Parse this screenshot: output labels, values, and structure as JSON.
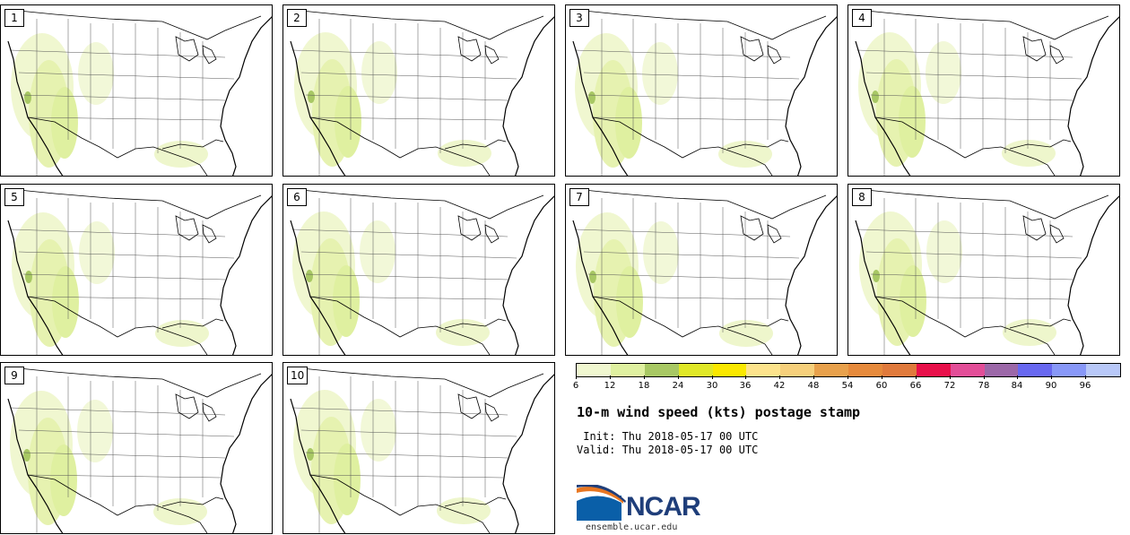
{
  "panels": [
    {
      "label": "1"
    },
    {
      "label": "2"
    },
    {
      "label": "3"
    },
    {
      "label": "4"
    },
    {
      "label": "5"
    },
    {
      "label": "6"
    },
    {
      "label": "7"
    },
    {
      "label": "8"
    },
    {
      "label": "9"
    },
    {
      "label": "10"
    }
  ],
  "colorbar": {
    "colors": [
      "#f0f7d0",
      "#dff0a0",
      "#a8c864",
      "#e0e828",
      "#fae800",
      "#fce38c",
      "#f6d07c",
      "#e8a14c",
      "#e68a3c",
      "#e07a3c",
      "#e8104a",
      "#e24e98",
      "#9c68a8",
      "#6868f0",
      "#8898f8",
      "#b8c8f8"
    ],
    "tick_labels": [
      "6",
      "12",
      "18",
      "24",
      "30",
      "36",
      "42",
      "48",
      "54",
      "60",
      "66",
      "72",
      "78",
      "84",
      "90",
      "96"
    ]
  },
  "title": "10-m wind speed (kts) postage stamp",
  "init": " Init: Thu 2018-05-17 00 UTC",
  "valid": "Valid: Thu 2018-05-17 00 UTC",
  "logo": {
    "text": "NCAR",
    "colors": {
      "blue": "#1f3e7a",
      "orange": "#e87722"
    }
  },
  "site": "ensemble.ucar.edu"
}
